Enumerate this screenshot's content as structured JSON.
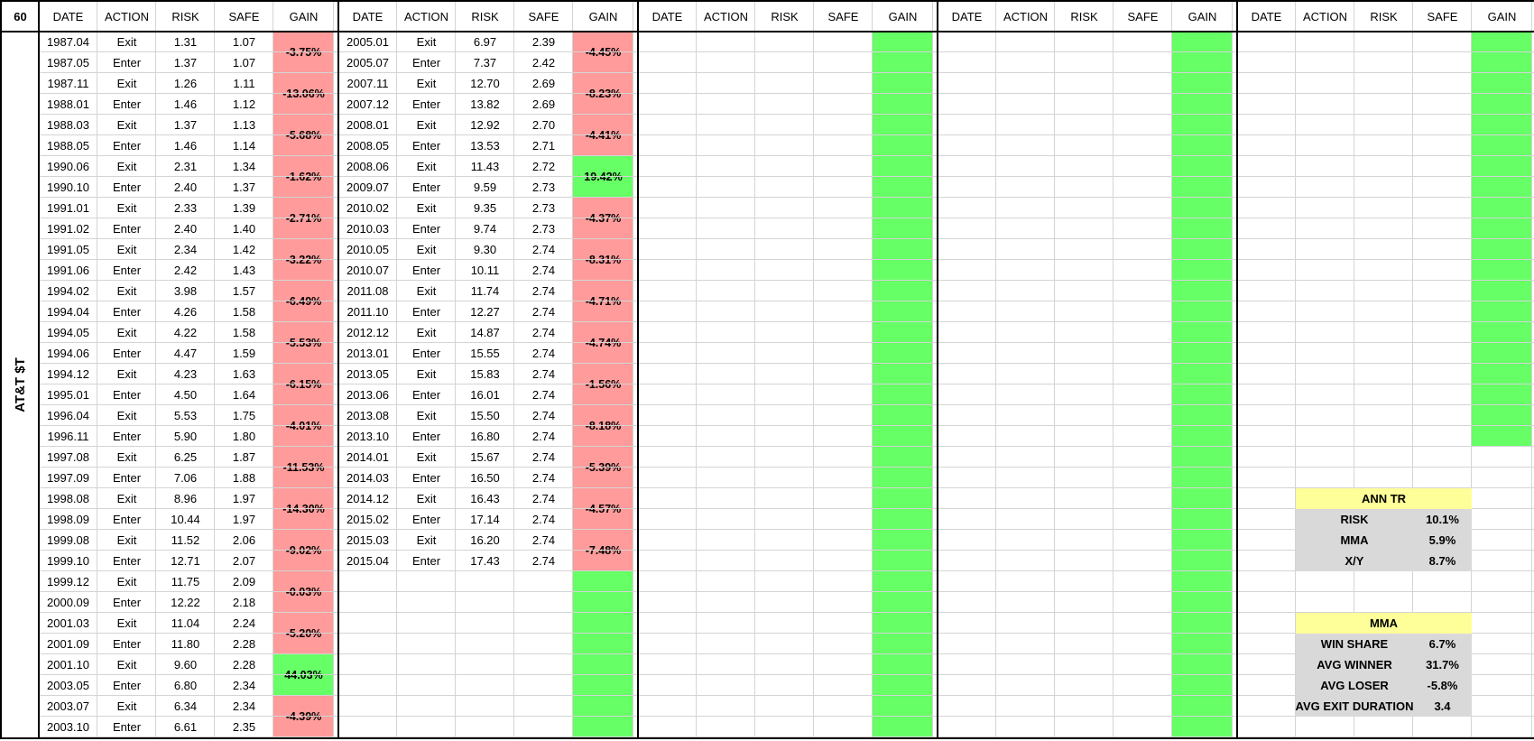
{
  "corner_label": "60",
  "ticker": "AT&T $T",
  "headers": [
    "DATE",
    "ACTION",
    "RISK",
    "SAFE",
    "GAIN"
  ],
  "colors": {
    "loss_fill": "#ff9b9b",
    "win_fill": "#66ff66",
    "stat_header_fill": "#ffff99",
    "stat_body_fill": "#d9d9d9",
    "grid": "#d4d4d4",
    "border": "#000000"
  },
  "blocks": [
    {
      "rows": [
        [
          "1987.04",
          "Exit",
          "1.31",
          "1.07"
        ],
        [
          "1987.05",
          "Enter",
          "1.37",
          "1.07"
        ],
        [
          "1987.11",
          "Exit",
          "1.26",
          "1.11"
        ],
        [
          "1988.01",
          "Enter",
          "1.46",
          "1.12"
        ],
        [
          "1988.03",
          "Exit",
          "1.37",
          "1.13"
        ],
        [
          "1988.05",
          "Enter",
          "1.46",
          "1.14"
        ],
        [
          "1990.06",
          "Exit",
          "2.31",
          "1.34"
        ],
        [
          "1990.10",
          "Enter",
          "2.40",
          "1.37"
        ],
        [
          "1991.01",
          "Exit",
          "2.33",
          "1.39"
        ],
        [
          "1991.02",
          "Enter",
          "2.40",
          "1.40"
        ],
        [
          "1991.05",
          "Exit",
          "2.34",
          "1.42"
        ],
        [
          "1991.06",
          "Enter",
          "2.42",
          "1.43"
        ],
        [
          "1994.02",
          "Exit",
          "3.98",
          "1.57"
        ],
        [
          "1994.04",
          "Enter",
          "4.26",
          "1.58"
        ],
        [
          "1994.05",
          "Exit",
          "4.22",
          "1.58"
        ],
        [
          "1994.06",
          "Enter",
          "4.47",
          "1.59"
        ],
        [
          "1994.12",
          "Exit",
          "4.23",
          "1.63"
        ],
        [
          "1995.01",
          "Enter",
          "4.50",
          "1.64"
        ],
        [
          "1996.04",
          "Exit",
          "5.53",
          "1.75"
        ],
        [
          "1996.11",
          "Enter",
          "5.90",
          "1.80"
        ],
        [
          "1997.08",
          "Exit",
          "6.25",
          "1.87"
        ],
        [
          "1997.09",
          "Enter",
          "7.06",
          "1.88"
        ],
        [
          "1998.08",
          "Exit",
          "8.96",
          "1.97"
        ],
        [
          "1998.09",
          "Enter",
          "10.44",
          "1.97"
        ],
        [
          "1999.08",
          "Exit",
          "11.52",
          "2.06"
        ],
        [
          "1999.10",
          "Enter",
          "12.71",
          "2.07"
        ],
        [
          "1999.12",
          "Exit",
          "11.75",
          "2.09"
        ],
        [
          "2000.09",
          "Enter",
          "12.22",
          "2.18"
        ],
        [
          "2001.03",
          "Exit",
          "11.04",
          "2.24"
        ],
        [
          "2001.09",
          "Enter",
          "11.80",
          "2.28"
        ],
        [
          "2001.10",
          "Exit",
          "9.60",
          "2.28"
        ],
        [
          "2003.05",
          "Enter",
          "6.80",
          "2.34"
        ],
        [
          "2003.07",
          "Exit",
          "6.34",
          "2.34"
        ],
        [
          "2003.10",
          "Enter",
          "6.61",
          "2.35"
        ]
      ],
      "gains": [
        "-3.75%",
        "-13.06%",
        "-5.68%",
        "-1.62%",
        "-2.71%",
        "-3.22%",
        "-6.49%",
        "-5.53%",
        "-6.15%",
        "-4.01%",
        "-11.53%",
        "-14.30%",
        "-9.02%",
        "-0.03%",
        "-5.20%",
        "44.03%",
        "-4.39%"
      ],
      "green_count": 0
    },
    {
      "rows": [
        [
          "2005.01",
          "Exit",
          "6.97",
          "2.39"
        ],
        [
          "2005.07",
          "Enter",
          "7.37",
          "2.42"
        ],
        [
          "2007.11",
          "Exit",
          "12.70",
          "2.69"
        ],
        [
          "2007.12",
          "Enter",
          "13.82",
          "2.69"
        ],
        [
          "2008.01",
          "Exit",
          "12.92",
          "2.70"
        ],
        [
          "2008.05",
          "Enter",
          "13.53",
          "2.71"
        ],
        [
          "2008.06",
          "Exit",
          "11.43",
          "2.72"
        ],
        [
          "2009.07",
          "Enter",
          "9.59",
          "2.73"
        ],
        [
          "2010.02",
          "Exit",
          "9.35",
          "2.73"
        ],
        [
          "2010.03",
          "Enter",
          "9.74",
          "2.73"
        ],
        [
          "2010.05",
          "Exit",
          "9.30",
          "2.74"
        ],
        [
          "2010.07",
          "Enter",
          "10.11",
          "2.74"
        ],
        [
          "2011.08",
          "Exit",
          "11.74",
          "2.74"
        ],
        [
          "2011.10",
          "Enter",
          "12.27",
          "2.74"
        ],
        [
          "2012.12",
          "Exit",
          "14.87",
          "2.74"
        ],
        [
          "2013.01",
          "Enter",
          "15.55",
          "2.74"
        ],
        [
          "2013.05",
          "Exit",
          "15.83",
          "2.74"
        ],
        [
          "2013.06",
          "Enter",
          "16.01",
          "2.74"
        ],
        [
          "2013.08",
          "Exit",
          "15.50",
          "2.74"
        ],
        [
          "2013.10",
          "Enter",
          "16.80",
          "2.74"
        ],
        [
          "2014.01",
          "Exit",
          "15.67",
          "2.74"
        ],
        [
          "2014.03",
          "Enter",
          "16.50",
          "2.74"
        ],
        [
          "2014.12",
          "Exit",
          "16.43",
          "2.74"
        ],
        [
          "2015.02",
          "Enter",
          "17.14",
          "2.74"
        ],
        [
          "2015.03",
          "Exit",
          "16.20",
          "2.74"
        ],
        [
          "2015.04",
          "Enter",
          "17.43",
          "2.74"
        ]
      ],
      "gains": [
        "-4.45%",
        "-8.23%",
        "-4.41%",
        "19.42%",
        "-4.37%",
        "-8.31%",
        "-4.71%",
        "-4.74%",
        "-1.56%",
        "-8.18%",
        "-5.39%",
        "-4.57%",
        "-7.48%"
      ],
      "green_count": 4
    },
    {
      "rows": [],
      "gains": [],
      "green_count": 17
    },
    {
      "rows": [],
      "gains": [],
      "green_count": 17
    },
    {
      "rows": [],
      "gains": [],
      "green_count": 10
    }
  ],
  "ann_tr": {
    "title": "ANN TR",
    "rows": [
      {
        "label": "RISK",
        "value": "10.1%"
      },
      {
        "label": "MMA",
        "value": "5.9%"
      },
      {
        "label": "X/Y",
        "value": "8.7%"
      }
    ]
  },
  "mma": {
    "title": "MMA",
    "rows": [
      {
        "label": "WIN SHARE",
        "value": "6.7%"
      },
      {
        "label": "AVG WINNER",
        "value": "31.7%"
      },
      {
        "label": "AVG LOSER",
        "value": "-5.8%"
      },
      {
        "label": "AVG EXIT DURATION",
        "value": "3.4"
      }
    ]
  }
}
